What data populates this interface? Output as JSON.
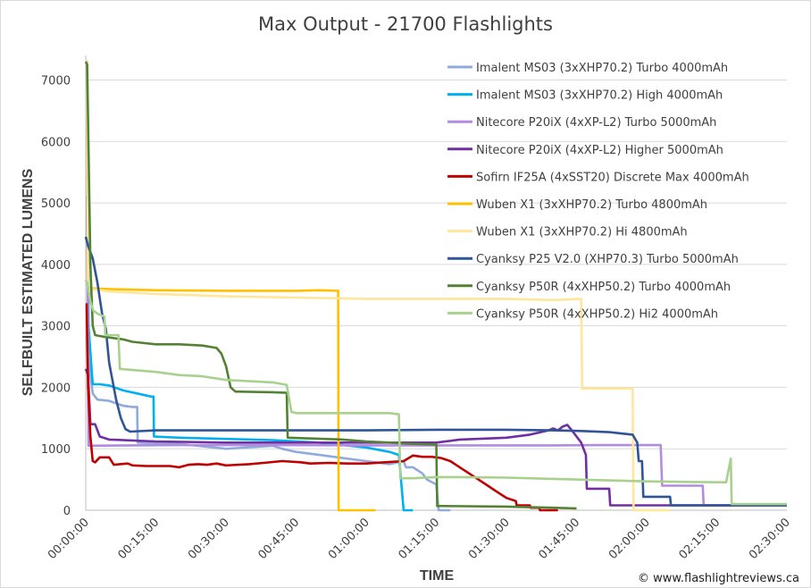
{
  "chart_data": {
    "type": "line",
    "title": "Max Output - 21700 Flashlights",
    "xlabel": "TIME",
    "ylabel": "SELFBUILT ESTIMATED LUMENS",
    "credit": "© www.flashlightreviews.ca",
    "x_unit": "minutes",
    "xlim": [
      0,
      150
    ],
    "ylim": [
      0,
      7400
    ],
    "y_ticks": [
      0,
      1000,
      2000,
      3000,
      4000,
      5000,
      6000,
      7000
    ],
    "x_ticks": [
      {
        "value": 0,
        "label": "00:00:00"
      },
      {
        "value": 15,
        "label": "00:15:00"
      },
      {
        "value": 30,
        "label": "00:30:00"
      },
      {
        "value": 45,
        "label": "00:45:00"
      },
      {
        "value": 60,
        "label": "01:00:00"
      },
      {
        "value": 75,
        "label": "01:15:00"
      },
      {
        "value": 90,
        "label": "01:30:00"
      },
      {
        "value": 105,
        "label": "01:45:00"
      },
      {
        "value": 120,
        "label": "02:00:00"
      },
      {
        "value": 135,
        "label": "02:15:00"
      },
      {
        "value": 150,
        "label": "02:30:00"
      }
    ],
    "grid": "horizontal",
    "legend": "top-right",
    "series": [
      {
        "name": "Imalent MS03 (3xXHP70.2) Turbo 4000mAh",
        "color": "#8faadc",
        "points": [
          [
            0,
            7300
          ],
          [
            0.3,
            7300
          ],
          [
            0.5,
            2500
          ],
          [
            1.5,
            1900
          ],
          [
            2.5,
            1800
          ],
          [
            5,
            1780
          ],
          [
            8,
            1700
          ],
          [
            10,
            1680
          ],
          [
            11,
            1680
          ],
          [
            11.1,
            1100
          ],
          [
            20,
            1080
          ],
          [
            30,
            1000
          ],
          [
            40,
            1050
          ],
          [
            42,
            1000
          ],
          [
            45,
            950
          ],
          [
            50,
            900
          ],
          [
            60,
            800
          ],
          [
            65,
            750
          ],
          [
            68,
            800
          ],
          [
            68.5,
            700
          ],
          [
            70,
            700
          ],
          [
            72,
            600
          ],
          [
            73,
            500
          ],
          [
            75,
            420
          ],
          [
            75.5,
            0
          ],
          [
            78,
            0
          ]
        ]
      },
      {
        "name": "Imalent MS03 (3xXHP70.2) High 4000mAh",
        "color": "#00b0f0",
        "points": [
          [
            0,
            7300
          ],
          [
            0.3,
            7300
          ],
          [
            0.6,
            3000
          ],
          [
            1.5,
            2050
          ],
          [
            3,
            2050
          ],
          [
            5,
            2030
          ],
          [
            8,
            1950
          ],
          [
            11,
            1900
          ],
          [
            14,
            1850
          ],
          [
            14.5,
            1850
          ],
          [
            14.6,
            1200
          ],
          [
            20,
            1180
          ],
          [
            30,
            1160
          ],
          [
            40,
            1140
          ],
          [
            50,
            1100
          ],
          [
            60,
            1020
          ],
          [
            65,
            950
          ],
          [
            67,
            900
          ],
          [
            68,
            0
          ],
          [
            70,
            0
          ]
        ]
      },
      {
        "name": "Nitecore P20iX (4xXP-L2) Turbo 5000mAh",
        "color": "#b18ce0",
        "points": [
          [
            0,
            5100
          ],
          [
            0.3,
            5100
          ],
          [
            0.6,
            1050
          ],
          [
            20,
            1060
          ],
          [
            40,
            1060
          ],
          [
            60,
            1055
          ],
          [
            80,
            1055
          ],
          [
            100,
            1055
          ],
          [
            110,
            1060
          ],
          [
            123,
            1060
          ],
          [
            123.3,
            400
          ],
          [
            132,
            400
          ],
          [
            132.2,
            80
          ],
          [
            150,
            80
          ]
        ]
      },
      {
        "name": "Nitecore P20iX (4xXP-L2) Higher 5000mAh",
        "color": "#7030a0",
        "points": [
          [
            0,
            2300
          ],
          [
            0.5,
            2200
          ],
          [
            1,
            1400
          ],
          [
            2,
            1400
          ],
          [
            3,
            1200
          ],
          [
            5,
            1150
          ],
          [
            15,
            1120
          ],
          [
            30,
            1100
          ],
          [
            45,
            1100
          ],
          [
            60,
            1100
          ],
          [
            75,
            1100
          ],
          [
            80,
            1150
          ],
          [
            90,
            1180
          ],
          [
            95,
            1230
          ],
          [
            99,
            1300
          ],
          [
            100,
            1330
          ],
          [
            101,
            1300
          ],
          [
            102,
            1360
          ],
          [
            103,
            1390
          ],
          [
            104,
            1300
          ],
          [
            106,
            1100
          ],
          [
            107,
            900
          ],
          [
            107.2,
            350
          ],
          [
            112,
            350
          ],
          [
            112.2,
            80
          ],
          [
            150,
            80
          ]
        ]
      },
      {
        "name": "Sofirn IF25A (4xSST20) Discrete Max 4000mAh",
        "color": "#c00000",
        "points": [
          [
            0,
            3350
          ],
          [
            0.2,
            3350
          ],
          [
            0.5,
            2000
          ],
          [
            1,
            1200
          ],
          [
            1.5,
            800
          ],
          [
            2,
            780
          ],
          [
            3,
            860
          ],
          [
            5,
            860
          ],
          [
            6,
            740
          ],
          [
            9,
            760
          ],
          [
            10,
            730
          ],
          [
            13,
            720
          ],
          [
            18,
            720
          ],
          [
            20,
            700
          ],
          [
            22,
            740
          ],
          [
            24,
            750
          ],
          [
            26,
            740
          ],
          [
            28,
            760
          ],
          [
            30,
            730
          ],
          [
            35,
            750
          ],
          [
            38,
            770
          ],
          [
            42,
            800
          ],
          [
            46,
            780
          ],
          [
            48,
            760
          ],
          [
            52,
            770
          ],
          [
            56,
            760
          ],
          [
            60,
            760
          ],
          [
            64,
            780
          ],
          [
            68,
            800
          ],
          [
            70,
            890
          ],
          [
            72,
            870
          ],
          [
            74,
            870
          ],
          [
            76,
            850
          ],
          [
            78,
            800
          ],
          [
            80,
            700
          ],
          [
            82,
            600
          ],
          [
            84,
            500
          ],
          [
            86,
            400
          ],
          [
            88,
            300
          ],
          [
            90,
            200
          ],
          [
            92,
            150
          ],
          [
            92.2,
            80
          ],
          [
            95,
            80
          ],
          [
            95.2,
            40
          ],
          [
            97,
            40
          ],
          [
            97.2,
            0
          ],
          [
            101,
            0
          ]
        ]
      },
      {
        "name": "Wuben X1 (3xXHP70.2) Turbo 4800mAh",
        "color": "#ffc000",
        "points": [
          [
            0,
            7300
          ],
          [
            0.3,
            7300
          ],
          [
            0.5,
            3620
          ],
          [
            1,
            3610
          ],
          [
            5,
            3600
          ],
          [
            15,
            3580
          ],
          [
            30,
            3570
          ],
          [
            45,
            3570
          ],
          [
            50,
            3580
          ],
          [
            54,
            3570
          ],
          [
            54.1,
            0
          ],
          [
            62,
            0
          ]
        ]
      },
      {
        "name": "Wuben X1 (3xXHP70.2) Hi 4800mAh",
        "color": "#ffe699",
        "points": [
          [
            0,
            7300
          ],
          [
            0.3,
            7300
          ],
          [
            0.5,
            3620
          ],
          [
            1,
            3600
          ],
          [
            5,
            3560
          ],
          [
            15,
            3520
          ],
          [
            30,
            3480
          ],
          [
            45,
            3460
          ],
          [
            60,
            3440
          ],
          [
            75,
            3440
          ],
          [
            90,
            3440
          ],
          [
            100,
            3420
          ],
          [
            106,
            3440
          ],
          [
            106.2,
            1980
          ],
          [
            117,
            1980
          ],
          [
            117.2,
            0
          ],
          [
            125,
            0
          ]
        ]
      },
      {
        "name": "Cyanksy P25 V2.0 (XHP70.3) Turbo 5000mAh",
        "color": "#2f5597",
        "points": [
          [
            0,
            4450
          ],
          [
            0.5,
            4300
          ],
          [
            1.5,
            4100
          ],
          [
            2.5,
            3700
          ],
          [
            3.5,
            3200
          ],
          [
            4.3,
            2950
          ],
          [
            5,
            2400
          ],
          [
            6.5,
            1800
          ],
          [
            7.5,
            1500
          ],
          [
            8.5,
            1320
          ],
          [
            9.5,
            1280
          ],
          [
            15,
            1300
          ],
          [
            30,
            1300
          ],
          [
            45,
            1300
          ],
          [
            60,
            1300
          ],
          [
            75,
            1310
          ],
          [
            90,
            1310
          ],
          [
            100,
            1300
          ],
          [
            106,
            1290
          ],
          [
            112,
            1270
          ],
          [
            117,
            1230
          ],
          [
            118,
            1100
          ],
          [
            118.3,
            800
          ],
          [
            119,
            800
          ],
          [
            119.3,
            220
          ],
          [
            125,
            220
          ],
          [
            125.2,
            80
          ],
          [
            150,
            80
          ]
        ]
      },
      {
        "name": "Cyanksy P50R (4xXHP50.2) Turbo 4000mAh",
        "color": "#548235",
        "points": [
          [
            0,
            7300
          ],
          [
            0.3,
            7250
          ],
          [
            0.6,
            5900
          ],
          [
            1,
            4000
          ],
          [
            1.5,
            3000
          ],
          [
            2,
            2850
          ],
          [
            4,
            2820
          ],
          [
            8,
            2780
          ],
          [
            10,
            2740
          ],
          [
            15,
            2700
          ],
          [
            20,
            2700
          ],
          [
            25,
            2680
          ],
          [
            28,
            2640
          ],
          [
            29,
            2550
          ],
          [
            30,
            2350
          ],
          [
            31,
            2000
          ],
          [
            32,
            1930
          ],
          [
            40,
            1920
          ],
          [
            43,
            1910
          ],
          [
            43.2,
            1180
          ],
          [
            55,
            1150
          ],
          [
            60,
            1120
          ],
          [
            65,
            1100
          ],
          [
            70,
            1080
          ],
          [
            75,
            1070
          ],
          [
            75.2,
            70
          ],
          [
            90,
            60
          ],
          [
            95,
            50
          ],
          [
            100,
            40
          ],
          [
            105,
            30
          ]
        ]
      },
      {
        "name": "Cyanksy P50R (4xXHP50.2) Hi2 4000mAh",
        "color": "#a9d18e",
        "points": [
          [
            0,
            3750
          ],
          [
            0.3,
            3700
          ],
          [
            1,
            3400
          ],
          [
            1.6,
            3250
          ],
          [
            2.5,
            3200
          ],
          [
            4,
            3150
          ],
          [
            4.2,
            2850
          ],
          [
            6,
            2850
          ],
          [
            7,
            2850
          ],
          [
            7.3,
            2300
          ],
          [
            15,
            2250
          ],
          [
            20,
            2200
          ],
          [
            25,
            2180
          ],
          [
            30,
            2120
          ],
          [
            35,
            2100
          ],
          [
            40,
            2080
          ],
          [
            43,
            2040
          ],
          [
            44,
            1600
          ],
          [
            45,
            1580
          ],
          [
            60,
            1580
          ],
          [
            65,
            1580
          ],
          [
            67,
            1560
          ],
          [
            67.3,
            520
          ],
          [
            70,
            520
          ],
          [
            75,
            540
          ],
          [
            80,
            540
          ],
          [
            90,
            530
          ],
          [
            100,
            510
          ],
          [
            110,
            490
          ],
          [
            120,
            470
          ],
          [
            130,
            460
          ],
          [
            137,
            455
          ],
          [
            138,
            840
          ],
          [
            138.2,
            100
          ],
          [
            150,
            100
          ]
        ]
      }
    ]
  }
}
